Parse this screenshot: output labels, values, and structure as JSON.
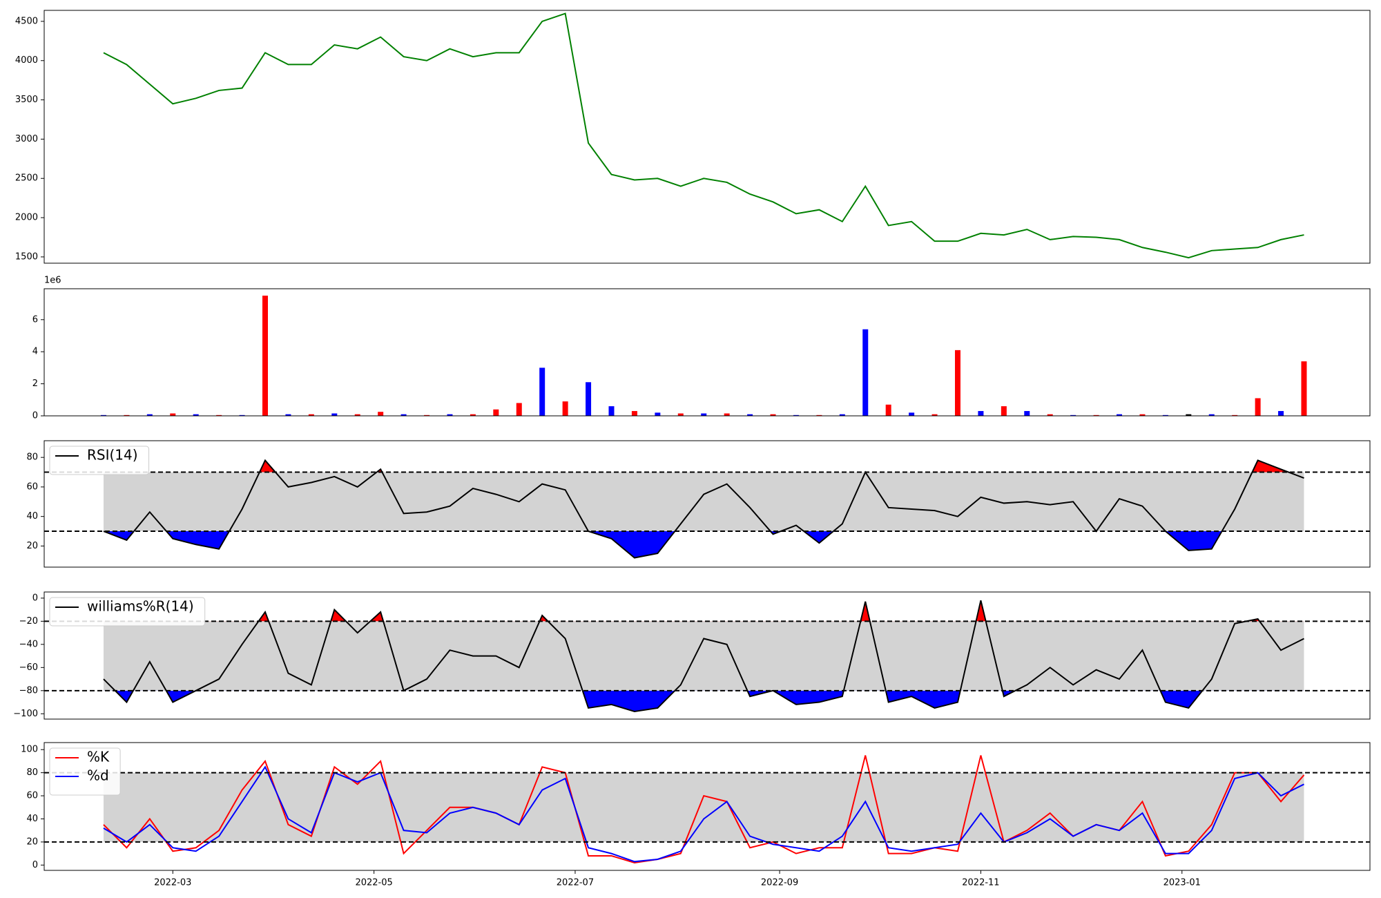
{
  "chart_data": [
    {
      "type": "line",
      "xlim": [
        "2022-01-21",
        "2023-02-27"
      ],
      "ylim": [
        1420,
        4640
      ],
      "yticks": [
        1500,
        2000,
        2500,
        3000,
        3500,
        4000,
        4500
      ],
      "x": [
        "2022-02-08",
        "2022-02-15",
        "2022-02-22",
        "2022-03-01",
        "2022-03-08",
        "2022-03-15",
        "2022-03-22",
        "2022-03-29",
        "2022-04-05",
        "2022-04-12",
        "2022-04-19",
        "2022-04-26",
        "2022-05-03",
        "2022-05-10",
        "2022-05-17",
        "2022-05-24",
        "2022-05-31",
        "2022-06-07",
        "2022-06-14",
        "2022-06-21",
        "2022-06-28",
        "2022-07-05",
        "2022-07-12",
        "2022-07-19",
        "2022-07-26",
        "2022-08-02",
        "2022-08-09",
        "2022-08-16",
        "2022-08-23",
        "2022-08-30",
        "2022-09-06",
        "2022-09-13",
        "2022-09-20",
        "2022-09-27",
        "2022-10-04",
        "2022-10-11",
        "2022-10-18",
        "2022-10-25",
        "2022-11-01",
        "2022-11-08",
        "2022-11-15",
        "2022-11-22",
        "2022-11-29",
        "2022-12-06",
        "2022-12-13",
        "2022-12-20",
        "2022-12-27",
        "2023-01-03",
        "2023-01-10",
        "2023-01-17",
        "2023-01-24",
        "2023-01-31",
        "2023-02-07"
      ],
      "series": [
        {
          "color": "green",
          "values": [
            4100,
            3950,
            3700,
            3450,
            3520,
            3620,
            3650,
            4100,
            3950,
            3950,
            4200,
            4150,
            4300,
            4050,
            4000,
            4150,
            4050,
            4100,
            4100,
            4500,
            4600,
            2950,
            2550,
            2480,
            2500,
            2400,
            2500,
            2450,
            2300,
            2200,
            2050,
            2100,
            1950,
            2400,
            1900,
            1950,
            1700,
            1700,
            1800,
            1780,
            1850,
            1720,
            1760,
            1750,
            1720,
            1620,
            1560,
            1490,
            1580,
            1600,
            1620,
            1720,
            1780
          ]
        }
      ]
    },
    {
      "type": "bar",
      "xlim": [
        "2022-01-21",
        "2023-02-27"
      ],
      "ylim": [
        0,
        7930000
      ],
      "offset_label": "1e6",
      "yticks": [
        {
          "value": 0,
          "label": "0"
        },
        {
          "value": 2000000,
          "label": "2"
        },
        {
          "value": 4000000,
          "label": "4"
        },
        {
          "value": 6000000,
          "label": "6"
        }
      ],
      "x": [
        "2022-02-08",
        "2022-02-15",
        "2022-02-22",
        "2022-03-01",
        "2022-03-08",
        "2022-03-15",
        "2022-03-22",
        "2022-03-29",
        "2022-04-05",
        "2022-04-12",
        "2022-04-19",
        "2022-04-26",
        "2022-05-03",
        "2022-05-10",
        "2022-05-17",
        "2022-05-24",
        "2022-05-31",
        "2022-06-07",
        "2022-06-14",
        "2022-06-21",
        "2022-06-28",
        "2022-07-05",
        "2022-07-12",
        "2022-07-19",
        "2022-07-26",
        "2022-08-02",
        "2022-08-09",
        "2022-08-16",
        "2022-08-23",
        "2022-08-30",
        "2022-09-06",
        "2022-09-13",
        "2022-09-20",
        "2022-09-27",
        "2022-10-04",
        "2022-10-11",
        "2022-10-18",
        "2022-10-25",
        "2022-11-01",
        "2022-11-08",
        "2022-11-15",
        "2022-11-22",
        "2022-11-29",
        "2022-12-06",
        "2022-12-13",
        "2022-12-20",
        "2022-12-27",
        "2023-01-03",
        "2023-01-10",
        "2023-01-17",
        "2023-01-24",
        "2023-01-31",
        "2023-02-07"
      ],
      "series": [
        {
          "values": [
            50000,
            50000,
            100000,
            150000,
            100000,
            50000,
            50000,
            7500000,
            100000,
            100000,
            150000,
            100000,
            250000,
            100000,
            50000,
            100000,
            100000,
            400000,
            800000,
            3000000,
            900000,
            2100000,
            600000,
            300000,
            200000,
            150000,
            150000,
            150000,
            100000,
            100000,
            50000,
            50000,
            100000,
            5400000,
            700000,
            200000,
            100000,
            4100000,
            300000,
            600000,
            300000,
            100000,
            50000,
            50000,
            100000,
            100000,
            50000,
            100000,
            100000,
            50000,
            1100000,
            300000,
            3400000
          ],
          "colors": [
            "blue",
            "red",
            "blue",
            "red",
            "blue",
            "red",
            "blue",
            "red",
            "blue",
            "red",
            "blue",
            "red",
            "red",
            "blue",
            "red",
            "blue",
            "red",
            "red",
            "red",
            "blue",
            "red",
            "blue",
            "blue",
            "red",
            "blue",
            "red",
            "blue",
            "red",
            "blue",
            "red",
            "blue",
            "red",
            "blue",
            "blue",
            "red",
            "blue",
            "red",
            "red",
            "blue",
            "red",
            "blue",
            "red",
            "blue",
            "red",
            "blue",
            "red",
            "blue",
            "black",
            "blue",
            "red",
            "red",
            "blue",
            "red"
          ]
        }
      ]
    },
    {
      "type": "line",
      "xlim": [
        "2022-01-21",
        "2023-02-27"
      ],
      "ylim": [
        5.7,
        91.3
      ],
      "yticks": [
        20,
        40,
        60,
        80
      ],
      "band": [
        30,
        70
      ],
      "band_color": "#d3d3d3",
      "hlines": [
        30,
        70
      ],
      "legend": "upper left",
      "x": [
        "2022-02-08",
        "2022-02-15",
        "2022-02-22",
        "2022-03-01",
        "2022-03-08",
        "2022-03-15",
        "2022-03-22",
        "2022-03-29",
        "2022-04-05",
        "2022-04-12",
        "2022-04-19",
        "2022-04-26",
        "2022-05-03",
        "2022-05-10",
        "2022-05-17",
        "2022-05-24",
        "2022-05-31",
        "2022-06-07",
        "2022-06-14",
        "2022-06-21",
        "2022-06-28",
        "2022-07-05",
        "2022-07-12",
        "2022-07-19",
        "2022-07-26",
        "2022-08-02",
        "2022-08-09",
        "2022-08-16",
        "2022-08-23",
        "2022-08-30",
        "2022-09-06",
        "2022-09-13",
        "2022-09-20",
        "2022-09-27",
        "2022-10-04",
        "2022-10-11",
        "2022-10-18",
        "2022-10-25",
        "2022-11-01",
        "2022-11-08",
        "2022-11-15",
        "2022-11-22",
        "2022-11-29",
        "2022-12-06",
        "2022-12-13",
        "2022-12-20",
        "2022-12-27",
        "2023-01-03",
        "2023-01-10",
        "2023-01-17",
        "2023-01-24",
        "2023-01-31",
        "2023-02-07"
      ],
      "series": [
        {
          "name": "RSI(14)",
          "color": "black",
          "upper_fill": "red",
          "lower_fill": "blue",
          "values": [
            30,
            24,
            43,
            25,
            21,
            18,
            45,
            78,
            60,
            63,
            67,
            60,
            72,
            42,
            43,
            47,
            59,
            55,
            50,
            62,
            58,
            30,
            25,
            12,
            15,
            35,
            55,
            62,
            46,
            28,
            34,
            22,
            35,
            70,
            46,
            45,
            44,
            40,
            53,
            49,
            50,
            48,
            50,
            30,
            52,
            47,
            30,
            17,
            18,
            45,
            78,
            72,
            66
          ]
        }
      ]
    },
    {
      "type": "line",
      "xlim": [
        "2022-01-21",
        "2023-02-27"
      ],
      "ylim": [
        -104.6,
        5.3
      ],
      "yticks": [
        {
          "value": -100,
          "label": "−100"
        },
        {
          "value": -80,
          "label": "−80"
        },
        {
          "value": -60,
          "label": "−60"
        },
        {
          "value": -40,
          "label": "−40"
        },
        {
          "value": -20,
          "label": "−20"
        },
        0
      ],
      "band": [
        -80,
        -20
      ],
      "band_color": "#d3d3d3",
      "hlines": [
        -80,
        -20
      ],
      "legend": "upper left",
      "x": [
        "2022-02-08",
        "2022-02-15",
        "2022-02-22",
        "2022-03-01",
        "2022-03-08",
        "2022-03-15",
        "2022-03-22",
        "2022-03-29",
        "2022-04-05",
        "2022-04-12",
        "2022-04-19",
        "2022-04-26",
        "2022-05-03",
        "2022-05-10",
        "2022-05-17",
        "2022-05-24",
        "2022-05-31",
        "2022-06-07",
        "2022-06-14",
        "2022-06-21",
        "2022-06-28",
        "2022-07-05",
        "2022-07-12",
        "2022-07-19",
        "2022-07-26",
        "2022-08-02",
        "2022-08-09",
        "2022-08-16",
        "2022-08-23",
        "2022-08-30",
        "2022-09-06",
        "2022-09-13",
        "2022-09-20",
        "2022-09-27",
        "2022-10-04",
        "2022-10-11",
        "2022-10-18",
        "2022-10-25",
        "2022-11-01",
        "2022-11-08",
        "2022-11-15",
        "2022-11-22",
        "2022-11-29",
        "2022-12-06",
        "2022-12-13",
        "2022-12-20",
        "2022-12-27",
        "2023-01-03",
        "2023-01-10",
        "2023-01-17",
        "2023-01-24",
        "2023-01-31",
        "2023-02-07"
      ],
      "series": [
        {
          "name": "williams%R(14)",
          "color": "black",
          "upper_fill": "red",
          "lower_fill": "blue",
          "values": [
            -70,
            -90,
            -55,
            -90,
            -80,
            -70,
            -40,
            -12,
            -65,
            -75,
            -10,
            -30,
            -12,
            -80,
            -70,
            -45,
            -50,
            -50,
            -60,
            -15,
            -35,
            -95,
            -92,
            -98,
            -95,
            -75,
            -35,
            -40,
            -85,
            -80,
            -92,
            -90,
            -85,
            -3,
            -90,
            -85,
            -95,
            -90,
            -2,
            -85,
            -75,
            -60,
            -75,
            -62,
            -70,
            -45,
            -90,
            -95,
            -70,
            -22,
            -18,
            -45,
            -35
          ]
        }
      ]
    },
    {
      "type": "line",
      "xlim": [
        "2022-01-21",
        "2023-02-27"
      ],
      "ylim": [
        -4.6,
        106.1
      ],
      "yticks": [
        0,
        20,
        40,
        60,
        80,
        100
      ],
      "band": [
        20,
        80
      ],
      "band_color": "#d3d3d3",
      "hlines": [
        20,
        80
      ],
      "legend": "upper left",
      "xticks": [
        {
          "value": "2022-03-01",
          "label": "2022-03"
        },
        {
          "value": "2022-05-01",
          "label": "2022-05"
        },
        {
          "value": "2022-07-01",
          "label": "2022-07"
        },
        {
          "value": "2022-09-01",
          "label": "2022-09"
        },
        {
          "value": "2022-11-01",
          "label": "2022-11"
        },
        {
          "value": "2023-01-01",
          "label": "2023-01"
        }
      ],
      "x": [
        "2022-02-08",
        "2022-02-15",
        "2022-02-22",
        "2022-03-01",
        "2022-03-08",
        "2022-03-15",
        "2022-03-22",
        "2022-03-29",
        "2022-04-05",
        "2022-04-12",
        "2022-04-19",
        "2022-04-26",
        "2022-05-03",
        "2022-05-10",
        "2022-05-17",
        "2022-05-24",
        "2022-05-31",
        "2022-06-07",
        "2022-06-14",
        "2022-06-21",
        "2022-06-28",
        "2022-07-05",
        "2022-07-12",
        "2022-07-19",
        "2022-07-26",
        "2022-08-02",
        "2022-08-09",
        "2022-08-16",
        "2022-08-23",
        "2022-08-30",
        "2022-09-06",
        "2022-09-13",
        "2022-09-20",
        "2022-09-27",
        "2022-10-04",
        "2022-10-11",
        "2022-10-18",
        "2022-10-25",
        "2022-11-01",
        "2022-11-08",
        "2022-11-15",
        "2022-11-22",
        "2022-11-29",
        "2022-12-06",
        "2022-12-13",
        "2022-12-20",
        "2022-12-27",
        "2023-01-03",
        "2023-01-10",
        "2023-01-17",
        "2023-01-24",
        "2023-01-31",
        "2023-02-07"
      ],
      "series": [
        {
          "name": "%K",
          "color": "red",
          "values": [
            35,
            15,
            40,
            12,
            15,
            30,
            65,
            90,
            35,
            25,
            85,
            70,
            90,
            10,
            30,
            50,
            50,
            45,
            35,
            85,
            80,
            8,
            8,
            2,
            5,
            10,
            60,
            55,
            15,
            20,
            10,
            15,
            15,
            95,
            10,
            10,
            15,
            12,
            95,
            20,
            30,
            45,
            25,
            35,
            30,
            55,
            8,
            12,
            35,
            80,
            80,
            55,
            78
          ]
        },
        {
          "name": "%d",
          "color": "blue",
          "values": [
            32,
            20,
            35,
            15,
            12,
            25,
            55,
            85,
            40,
            28,
            80,
            72,
            80,
            30,
            28,
            45,
            50,
            45,
            35,
            65,
            75,
            15,
            10,
            3,
            5,
            12,
            40,
            55,
            25,
            18,
            15,
            12,
            25,
            55,
            15,
            12,
            15,
            18,
            45,
            20,
            28,
            40,
            25,
            35,
            30,
            45,
            10,
            10,
            30,
            75,
            80,
            60,
            70
          ]
        }
      ]
    }
  ]
}
